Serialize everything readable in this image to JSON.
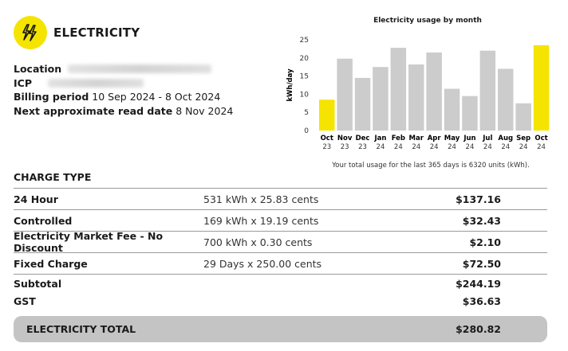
{
  "header": {
    "title": "ELECTRICITY",
    "icon": "lightning-bolt-icon",
    "accent": "#f5e400"
  },
  "account": {
    "location_label": "Location",
    "icp_label": "ICP",
    "billing_period_label": "Billing period",
    "billing_period_value": "10 Sep 2024 - 8 Oct 2024",
    "next_read_label": "Next approximate read date",
    "next_read_value": "8 Nov 2024"
  },
  "chart_data": {
    "type": "bar",
    "title": "Electricity usage by month",
    "ylabel": "kWh/day",
    "xlabel": "",
    "ylim": [
      0,
      25
    ],
    "yticks": [
      "0",
      "5",
      "10",
      "15",
      "20",
      "25"
    ],
    "categories": [
      {
        "month": "Oct",
        "year": "23"
      },
      {
        "month": "Nov",
        "year": "23"
      },
      {
        "month": "Dec",
        "year": "23"
      },
      {
        "month": "Jan",
        "year": "24"
      },
      {
        "month": "Feb",
        "year": "24"
      },
      {
        "month": "Mar",
        "year": "24"
      },
      {
        "month": "Apr",
        "year": "24"
      },
      {
        "month": "May",
        "year": "24"
      },
      {
        "month": "Jun",
        "year": "24"
      },
      {
        "month": "Jul",
        "year": "24"
      },
      {
        "month": "Aug",
        "year": "24"
      },
      {
        "month": "Sep",
        "year": "24"
      },
      {
        "month": "Oct",
        "year": "24"
      }
    ],
    "values": [
      8.5,
      19.8,
      14.5,
      17.5,
      22.8,
      18.2,
      21.5,
      11.5,
      9.5,
      22.0,
      17.0,
      7.5,
      23.5
    ],
    "highlight": [
      0,
      12
    ],
    "colors": {
      "bar": "#cccccc",
      "highlight": "#f5e400"
    },
    "grid": false,
    "legend": "none"
  },
  "usage_summary": "Your total usage for the last 365 days is 6320 units (kWh).",
  "charges": {
    "heading": "CHARGE TYPE",
    "rows": [
      {
        "name": "24 Hour",
        "detail": "531 kWh x 25.83 cents",
        "amount": "$137.16"
      },
      {
        "name": "Controlled",
        "detail": "169 kWh x 19.19 cents",
        "amount": "$32.43"
      },
      {
        "name": "Electricity Market Fee - No Discount",
        "detail": "700 kWh x 0.30 cents",
        "amount": "$2.10"
      },
      {
        "name": "Fixed Charge",
        "detail": "29 Days x 250.00 cents",
        "amount": "$72.50"
      }
    ],
    "subtotal_label": "Subtotal",
    "subtotal": "$244.19",
    "gst_label": "GST",
    "gst": "$36.63",
    "total_label": "ELECTRICITY TOTAL",
    "total": "$280.82"
  }
}
